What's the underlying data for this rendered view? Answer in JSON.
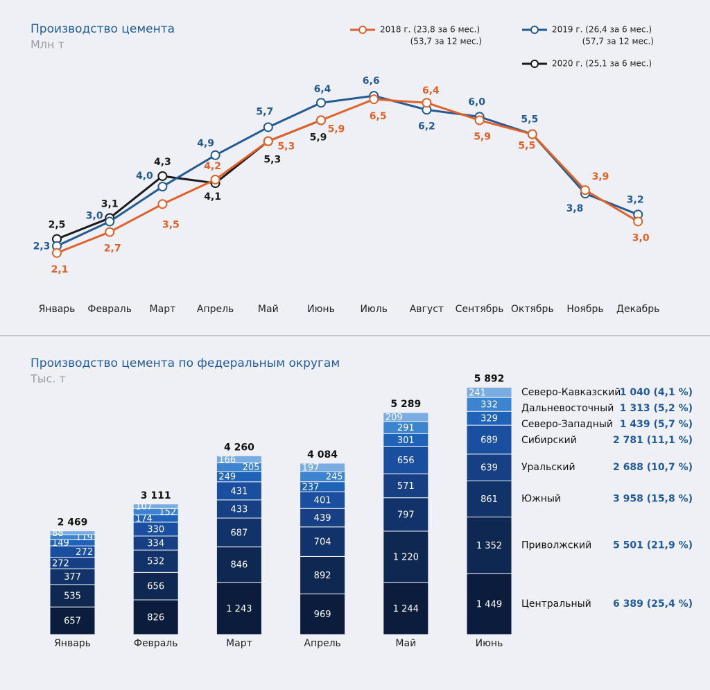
{
  "chart_data": [
    {
      "type": "line",
      "title": "Производство цемента",
      "subtitle": "Млн т",
      "categories": [
        "Январь",
        "Февраль",
        "Март",
        "Апрель",
        "Май",
        "Июнь",
        "Июль",
        "Август",
        "Сентябрь",
        "Октябрь",
        "Ноябрь",
        "Декабрь"
      ],
      "ylim": [
        1.5,
        7
      ],
      "series": [
        {
          "name": "2018 г. (23,8 за 6 мес.)",
          "name_extra": "(53,7 за 12 мес.)",
          "color": "#e0622a",
          "values": [
            2.1,
            2.7,
            3.5,
            4.2,
            5.3,
            5.9,
            6.5,
            6.4,
            5.9,
            5.5,
            3.9,
            3.0
          ],
          "value_labels": [
            "2,1",
            "2,7",
            "3,5",
            "4,2",
            "5,3",
            "5,9",
            "6,5",
            "6,4",
            "5,9",
            "5,5",
            "3,9",
            "3,0"
          ]
        },
        {
          "name": "2019 г. (26,4 за 6 мес.)",
          "name_extra": "(57,7 за 12 мес.)",
          "color": "#235a92",
          "values": [
            2.3,
            3.0,
            4.0,
            4.9,
            5.7,
            6.4,
            6.6,
            6.2,
            6.0,
            5.5,
            3.8,
            3.2
          ],
          "value_labels": [
            "2,3",
            "3,0",
            "4,0",
            "4,9",
            "5,7",
            "6,4",
            "6,6",
            "6,2",
            "6,0",
            "5,5",
            "3,8",
            "3,2"
          ]
        },
        {
          "name": "2020 г. (25,1 за 6 мес.)",
          "color": "#1a1a1a",
          "values": [
            2.5,
            3.1,
            4.3,
            4.1,
            5.3,
            5.9,
            null,
            null,
            null,
            null,
            null,
            null
          ],
          "value_labels": [
            "2,5",
            "3,1",
            "4,3",
            "4,1",
            "5,3",
            "5,9",
            null,
            null,
            null,
            null,
            null,
            null
          ]
        }
      ]
    },
    {
      "type": "bar",
      "stacked": true,
      "title": "Производство цемента по федеральным округам",
      "subtitle": "Тыс. т",
      "categories": [
        "Январь",
        "Февраль",
        "Март",
        "Апрель",
        "Май",
        "Июнь"
      ],
      "ylim": [
        0,
        6000
      ],
      "totals": [
        2469,
        3111,
        4260,
        4084,
        5289,
        5892
      ],
      "total_labels": [
        "2 469",
        "3 111",
        "4 260",
        "4 084",
        "5 289",
        "5 892"
      ],
      "series": [
        {
          "name": "Центральный",
          "summary": "6 389 (25,4 %)",
          "color": "#0b1c3d",
          "values": [
            657,
            826,
            1243,
            969,
            1244,
            1449
          ],
          "value_labels": [
            "657",
            "826",
            "1 243",
            "969",
            "1 244",
            "1 449"
          ]
        },
        {
          "name": "Приволжский",
          "summary": "5 501 (21,9 %)",
          "color": "#0f2852",
          "values": [
            535,
            656,
            846,
            892,
            1220,
            1352
          ],
          "value_labels": [
            "535",
            "656",
            "846",
            "892",
            "1 220",
            "1 352"
          ]
        },
        {
          "name": "Южный",
          "summary": "3 958 (15,8 %)",
          "color": "#12336a",
          "values": [
            377,
            532,
            687,
            704,
            797,
            861
          ],
          "value_labels": [
            "377",
            "532",
            "687",
            "704",
            "797",
            "861"
          ]
        },
        {
          "name": "Уральский",
          "summary": "2 688 (10,7 %)",
          "color": "#163f84",
          "values": [
            272,
            334,
            433,
            439,
            571,
            639
          ],
          "value_labels": [
            "272",
            "334",
            "433",
            "439",
            "571",
            "639"
          ]
        },
        {
          "name": "Сибирский",
          "summary": "2 781 (11,1 %)",
          "color": "#1a4e9e",
          "values": [
            272,
            330,
            431,
            401,
            656,
            689
          ],
          "value_labels": [
            "272",
            "330",
            "431",
            "401",
            "656",
            "689"
          ]
        },
        {
          "name": "Северо-Западный",
          "summary": "1 439 (5,7 %)",
          "color": "#1f63b8",
          "values": [
            149,
            174,
            249,
            237,
            301,
            329
          ],
          "value_labels": [
            "149",
            "174",
            "249",
            "237",
            "301",
            "329"
          ]
        },
        {
          "name": "Дальневосточный",
          "summary": "1 313 (5,2 %)",
          "color": "#3d84cf",
          "values": [
            119,
            152,
            205,
            245,
            291,
            332
          ],
          "value_labels": [
            "119",
            "152",
            "205",
            "245",
            "291",
            "332"
          ]
        },
        {
          "name": "Северо-Кавказский",
          "summary": "1 040 (4,1 %)",
          "color": "#78ace2",
          "values": [
            88,
            107,
            166,
            197,
            209,
            241
          ],
          "value_labels": [
            "88",
            "107",
            "166",
            "197",
            "209",
            "241"
          ]
        }
      ]
    }
  ]
}
